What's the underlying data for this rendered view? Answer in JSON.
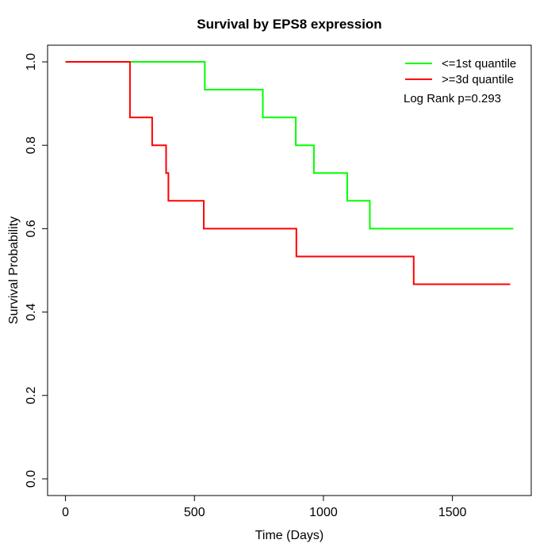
{
  "figure": {
    "title": "Survival by EPS8 expression",
    "xlabel": "Time (Days)",
    "ylabel": "Survival Probability",
    "annotation": "Log Rank p=0.293"
  },
  "chart_data": {
    "type": "line",
    "subtype": "kaplan-meier-step",
    "title": "Survival by EPS8 expression",
    "xlabel": "Time (Days)",
    "ylabel": "Survival Probability",
    "xlim": [
      0,
      1736
    ],
    "ylim": [
      0,
      1
    ],
    "x_ticks": [
      0,
      500,
      1000,
      1500
    ],
    "y_ticks": [
      0.0,
      0.2,
      0.4,
      0.6,
      0.8,
      1.0
    ],
    "grid": false,
    "legend_position": "top-right",
    "annotation": "Log Rank p=0.293",
    "series": [
      {
        "name": "<=1st quantile",
        "color": "#00ff00",
        "points": [
          [
            0,
            1.0
          ],
          [
            540,
            0.9333
          ],
          [
            765,
            0.8667
          ],
          [
            893,
            0.8
          ],
          [
            963,
            0.7333
          ],
          [
            1092,
            0.6667
          ],
          [
            1180,
            0.6
          ],
          [
            1736,
            0.6
          ]
        ]
      },
      {
        "name": ">=3d quantile",
        "color": "#ff0000",
        "points": [
          [
            0,
            1.0
          ],
          [
            250,
            0.8667
          ],
          [
            336,
            0.8
          ],
          [
            390,
            0.7333
          ],
          [
            399,
            0.6667
          ],
          [
            536,
            0.6
          ],
          [
            895,
            0.5333
          ],
          [
            1350,
            0.4667
          ],
          [
            1724,
            0.4667
          ]
        ]
      }
    ]
  }
}
